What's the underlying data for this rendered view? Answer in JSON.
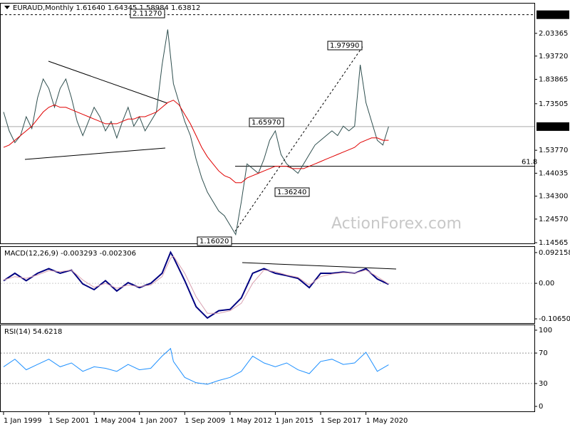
{
  "chart_data": [
    {
      "type": "line",
      "title": "EURAUD,Monthly  1.61640 1.64345 1.58984 1.63812",
      "watermark": "ActionForex.com",
      "x": [
        0,
        4,
        8,
        12,
        16,
        20,
        24,
        28,
        32,
        36,
        40,
        44,
        48,
        52,
        56,
        60,
        64,
        68,
        72,
        76,
        80,
        84,
        88,
        92,
        96,
        100,
        104,
        108,
        112,
        116,
        120,
        124,
        128,
        132,
        136,
        140,
        144,
        148,
        152,
        156,
        160,
        164,
        168,
        172,
        176,
        180,
        184,
        188,
        192,
        196,
        200,
        204,
        208,
        212,
        216,
        220,
        224,
        228,
        232,
        236,
        240,
        244,
        248,
        252,
        256,
        260,
        264,
        268,
        272
      ],
      "xlim": [
        -2,
        375
      ],
      "xticks": [
        {
          "value": 0,
          "label": "1 Jan 1999"
        },
        {
          "value": 32,
          "label": "1 Sep 2001"
        },
        {
          "value": 64,
          "label": "1 May 2004"
        },
        {
          "value": 96,
          "label": "1 Jan 2007"
        },
        {
          "value": 128,
          "label": "1 Sep 2009"
        },
        {
          "value": 160,
          "label": "1 May 2012"
        },
        {
          "value": 192,
          "label": "1 Jan 2015"
        },
        {
          "value": 224,
          "label": "1 Sep 2017"
        },
        {
          "value": 256,
          "label": "1 May 2020"
        }
      ],
      "ylim": [
        1.1427,
        2.16
      ],
      "yticks": [
        2.03365,
        {
          "value": 1.9372,
          "label": "1.93720"
        },
        1.83865,
        1.73505,
        {
          "value": 1.5377,
          "label": "1.53770"
        },
        1.44035,
        {
          "value": 1.343,
          "label": "1.34300"
        },
        {
          "value": 1.2457,
          "label": "1.24570"
        },
        1.14565
      ],
      "series": [
        {
          "color": "#2f4f4f",
          "values": [
            1.7,
            1.62,
            1.57,
            1.6,
            1.68,
            1.63,
            1.76,
            1.84,
            1.8,
            1.72,
            1.8,
            1.84,
            1.76,
            1.66,
            1.6,
            1.66,
            1.72,
            1.68,
            1.62,
            1.66,
            1.59,
            1.66,
            1.72,
            1.64,
            1.68,
            1.62,
            1.66,
            1.7,
            1.9,
            2.05,
            1.82,
            1.74,
            1.66,
            1.6,
            1.5,
            1.42,
            1.36,
            1.32,
            1.28,
            1.26,
            1.22,
            1.18,
            1.32,
            1.48,
            1.46,
            1.44,
            1.5,
            1.58,
            1.62,
            1.52,
            1.48,
            1.46,
            1.44,
            1.48,
            1.52,
            1.56,
            1.58,
            1.6,
            1.62,
            1.6,
            1.64,
            1.62,
            1.64,
            1.9,
            1.74,
            1.66,
            1.58,
            1.56,
            1.638
          ]
        },
        {
          "color": "#e00000",
          "values": [
            1.55,
            1.56,
            1.58,
            1.6,
            1.62,
            1.64,
            1.67,
            1.7,
            1.72,
            1.73,
            1.72,
            1.72,
            1.71,
            1.7,
            1.69,
            1.68,
            1.67,
            1.66,
            1.65,
            1.65,
            1.65,
            1.66,
            1.67,
            1.67,
            1.68,
            1.68,
            1.69,
            1.7,
            1.72,
            1.74,
            1.75,
            1.73,
            1.69,
            1.65,
            1.6,
            1.55,
            1.51,
            1.48,
            1.45,
            1.43,
            1.42,
            1.4,
            1.4,
            1.42,
            1.43,
            1.44,
            1.45,
            1.46,
            1.47,
            1.47,
            1.47,
            1.46,
            1.46,
            1.46,
            1.47,
            1.48,
            1.49,
            1.5,
            1.51,
            1.52,
            1.53,
            1.54,
            1.55,
            1.57,
            1.58,
            1.59,
            1.59,
            1.58,
            1.58
          ]
        }
      ],
      "high_marker": {
        "value": 2.1127,
        "label": "2.11270"
      },
      "price_marker": {
        "value": 1.63812,
        "label": "1.63812"
      },
      "level": {
        "value": 1.4697,
        "label": "61.8"
      },
      "annotations": [
        "2.11270",
        "1.97990",
        "1.65970",
        "1.36240",
        "1.16020"
      ]
    },
    {
      "type": "line",
      "title": "MACD(12,26,9) -0.003293 -0.002306",
      "x": [
        0,
        8,
        16,
        24,
        32,
        40,
        48,
        56,
        64,
        72,
        80,
        88,
        96,
        104,
        112,
        118,
        120,
        128,
        136,
        144,
        152,
        160,
        168,
        176,
        184,
        192,
        200,
        208,
        216,
        224,
        232,
        240,
        248,
        256,
        264,
        272
      ],
      "ylim": [
        -0.1192,
        0.109
      ],
      "yticks": [
        0.092158,
        {
          "value": 0,
          "label": "0.00"
        },
        -0.106503
      ],
      "series": [
        {
          "color": "#000080",
          "values": [
            0.008,
            0.03,
            0.008,
            0.03,
            0.044,
            0.03,
            0.04,
            -0.002,
            -0.019,
            0.008,
            -0.023,
            0.002,
            -0.013,
            0,
            0.03,
            0.093,
            0.078,
            0.008,
            -0.07,
            -0.104,
            -0.082,
            -0.078,
            -0.044,
            0.03,
            0.044,
            0.03,
            0.023,
            0.015,
            -0.013,
            0.03,
            0.03,
            0.034,
            0.03,
            0.044,
            0.013,
            -0.003
          ]
        },
        {
          "color": "#d8a0b0",
          "values": [
            0.01,
            0.02,
            0.015,
            0.025,
            0.038,
            0.035,
            0.04,
            0.01,
            -0.012,
            0,
            -0.015,
            -0.005,
            -0.01,
            -0.005,
            0.02,
            0.075,
            0.082,
            0.03,
            -0.04,
            -0.09,
            -0.09,
            -0.082,
            -0.06,
            0,
            0.04,
            0.035,
            0.025,
            0.018,
            -0.005,
            0.02,
            0.028,
            0.032,
            0.03,
            0.04,
            0.02,
            -0.002
          ]
        }
      ]
    },
    {
      "type": "line",
      "title": "RSI(14) 54.6218",
      "x": [
        0,
        8,
        16,
        24,
        32,
        40,
        48,
        56,
        64,
        72,
        80,
        88,
        96,
        104,
        112,
        118,
        120,
        128,
        136,
        144,
        152,
        160,
        168,
        176,
        184,
        192,
        200,
        208,
        216,
        224,
        232,
        240,
        248,
        256,
        264,
        272
      ],
      "ylim": [
        -6.5,
        106.5
      ],
      "yticks": [
        100,
        70,
        30,
        0
      ],
      "levels": [
        70,
        30
      ],
      "series": [
        {
          "color": "#1e90ff",
          "values": [
            52,
            62,
            48,
            55,
            62,
            52,
            57,
            46,
            52,
            50,
            46,
            55,
            48,
            50,
            66,
            76,
            59,
            38,
            31,
            29,
            34,
            38,
            46,
            66,
            57,
            52,
            57,
            48,
            43,
            59,
            62,
            55,
            57,
            71,
            46,
            54.6
          ]
        }
      ]
    }
  ]
}
